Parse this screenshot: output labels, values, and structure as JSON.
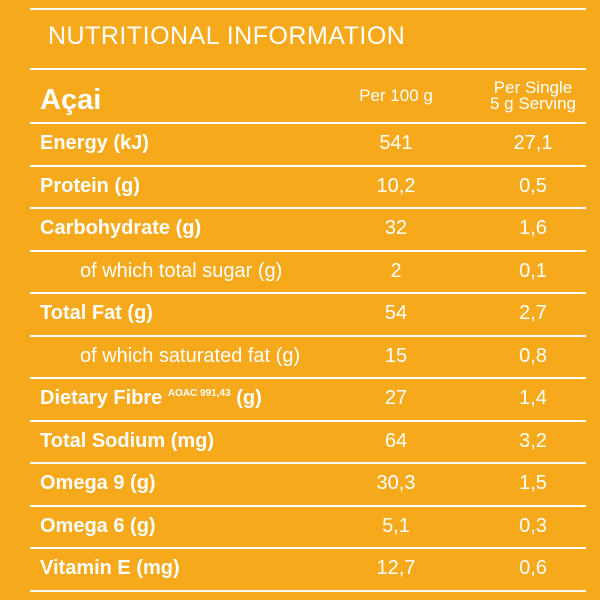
{
  "header": {
    "title": "NUTRITIONAL INFORMATION"
  },
  "table": {
    "columns": [
      "Açai",
      "Per 100 g",
      "Per Single\n5 g Serving"
    ],
    "rows": [
      {
        "label": "Energy (kJ)",
        "per_100g": "541",
        "per_serving": "27,1",
        "indent": false
      },
      {
        "label": "Protein (g)",
        "per_100g": "10,2",
        "per_serving": "0,5",
        "indent": false
      },
      {
        "label": "Carbohydrate (g)",
        "per_100g": "32",
        "per_serving": "1,6",
        "indent": false
      },
      {
        "label": "of which total sugar (g)",
        "per_100g": "2",
        "per_serving": "0,1",
        "indent": true
      },
      {
        "label": "Total Fat (g)",
        "per_100g": "54",
        "per_serving": "2,7",
        "indent": false
      },
      {
        "label": "of which saturated fat (g)",
        "per_100g": "15",
        "per_serving": "0,8",
        "indent": true
      },
      {
        "label": "Dietary Fibre",
        "sup": "AOAC 991,43",
        "unit": "(g)",
        "per_100g": "27",
        "per_serving": "1,4",
        "indent": false
      },
      {
        "label": "Total Sodium (mg)",
        "per_100g": "64",
        "per_serving": "3,2",
        "indent": false
      },
      {
        "label": "Omega 9 (g)",
        "per_100g": "30,3",
        "per_serving": "1,5",
        "indent": false
      },
      {
        "label": "Omega 6 (g)",
        "per_100g": "5,1",
        "per_serving": "0,3",
        "indent": false
      },
      {
        "label": "Vitamin E (mg)",
        "per_100g": "12,7",
        "per_serving": "0,6",
        "indent": false
      }
    ]
  }
}
